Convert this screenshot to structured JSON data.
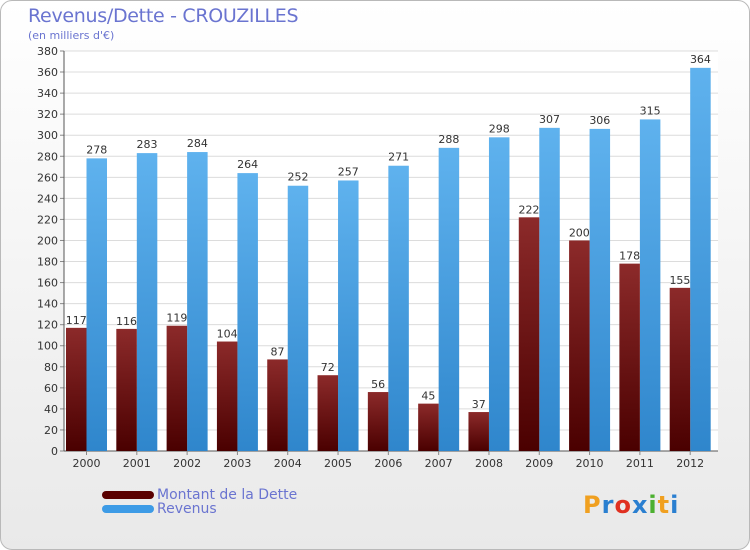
{
  "chart_data": {
    "type": "bar",
    "title": "Revenus/Dette - CROUZILLES",
    "subtitle": "(en milliers d'€)",
    "categories": [
      "2000",
      "2001",
      "2002",
      "2003",
      "2004",
      "2005",
      "2006",
      "2007",
      "2008",
      "2009",
      "2010",
      "2011",
      "2012"
    ],
    "series": [
      {
        "name": "Montant de la Dette",
        "color": "#7a1010",
        "values": [
          117,
          116,
          119,
          104,
          87,
          72,
          56,
          45,
          37,
          222,
          200,
          178,
          155
        ]
      },
      {
        "name": "Revenus",
        "color": "#4aa3e8",
        "values": [
          278,
          283,
          284,
          264,
          252,
          257,
          271,
          288,
          298,
          307,
          306,
          315,
          364
        ]
      }
    ],
    "ylim": [
      0,
      380
    ],
    "ytick_step": 20,
    "grid": true,
    "legend_placement": "bottom-left"
  },
  "logo": {
    "text": "Proxiti",
    "colors": [
      "#f0a020",
      "#2a7fd0",
      "#e03020",
      "#2a7fd0",
      "#4cb030",
      "#f0a020",
      "#2a7fd0"
    ]
  }
}
